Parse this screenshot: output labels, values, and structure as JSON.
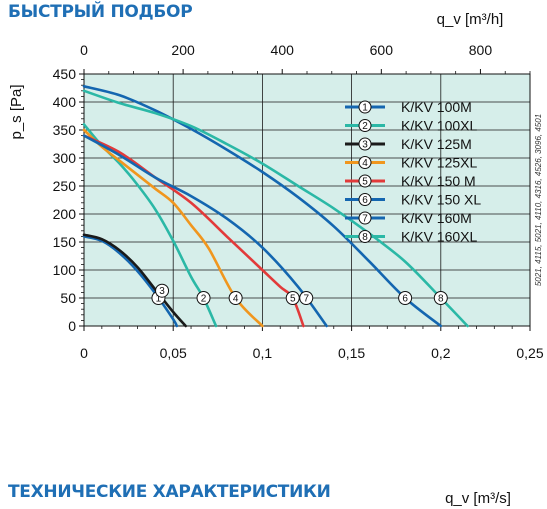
{
  "headings": {
    "top": "БЫСТРЫЙ ПОДБОР",
    "bottom": "ТЕХНИЧЕСКИЕ ХАРАКТЕРИСТИКИ"
  },
  "side_note": "5021, 4115, 5021, 4110, 4316, 4526, 3096, 4501",
  "colors": {
    "plot_background": "#d6eeea",
    "grid": "#1a1a1a",
    "heading": "#1f6fb5"
  },
  "chart_data": {
    "type": "line",
    "title": "",
    "xlabel": "q_v [m³/s]",
    "x2label": "q_v [m³/h]",
    "ylabel": "p_s [Pa]",
    "xlim": [
      0,
      0.25
    ],
    "x2lim": [
      0,
      900
    ],
    "ylim": [
      0,
      450
    ],
    "x_ticks": [
      "0",
      "0,05",
      "0,1",
      "0,15",
      "0,2",
      "0,25"
    ],
    "x2_ticks": [
      "0",
      "200",
      "400",
      "600",
      "800"
    ],
    "y_ticks": [
      "0",
      "50",
      "100",
      "150",
      "200",
      "250",
      "300",
      "350",
      "400",
      "450"
    ],
    "grid": true,
    "legend_position": "top-right",
    "marker_level_pa": 50,
    "series": [
      {
        "name": "K/KV 100M",
        "marker": "1",
        "color": "#1466b0",
        "x": [
          0,
          0.01,
          0.02,
          0.03,
          0.04,
          0.05,
          0.052
        ],
        "y": [
          160,
          152,
          130,
          98,
          58,
          12,
          0
        ]
      },
      {
        "name": "K/KV 100XL",
        "marker": "2",
        "color": "#2bb8a6",
        "x": [
          0,
          0.01,
          0.02,
          0.03,
          0.04,
          0.05,
          0.06,
          0.067,
          0.074
        ],
        "y": [
          360,
          322,
          290,
          252,
          208,
          152,
          88,
          50,
          0
        ]
      },
      {
        "name": "K/KV 125M",
        "marker": "3",
        "color": "#1a1a1a",
        "x": [
          0,
          0.01,
          0.02,
          0.03,
          0.04,
          0.05,
          0.057
        ],
        "y": [
          163,
          155,
          135,
          105,
          65,
          25,
          0
        ]
      },
      {
        "name": "K/KV 125XL",
        "marker": "4",
        "color": "#f0961e",
        "x": [
          0,
          0.01,
          0.02,
          0.03,
          0.04,
          0.05,
          0.06,
          0.07,
          0.085,
          0.1
        ],
        "y": [
          350,
          320,
          295,
          270,
          245,
          220,
          180,
          138,
          50,
          0
        ]
      },
      {
        "name": "K/KV 150 M",
        "marker": "5",
        "color": "#e23a3a",
        "x": [
          0,
          0.02,
          0.04,
          0.06,
          0.08,
          0.09,
          0.1,
          0.11,
          0.117,
          0.123
        ],
        "y": [
          340,
          310,
          265,
          220,
          160,
          130,
          100,
          70,
          50,
          0
        ]
      },
      {
        "name": "K/KV 150 XL",
        "marker": "6",
        "color": "#1466b0",
        "x": [
          0,
          0.02,
          0.04,
          0.06,
          0.08,
          0.1,
          0.12,
          0.14,
          0.16,
          0.18,
          0.2
        ],
        "y": [
          428,
          412,
          385,
          352,
          315,
          275,
          230,
          178,
          115,
          50,
          0
        ]
      },
      {
        "name": "K/KV 160M",
        "marker": "7",
        "color": "#1466b0",
        "x": [
          0,
          0.02,
          0.04,
          0.06,
          0.08,
          0.1,
          0.12,
          0.136
        ],
        "y": [
          340,
          305,
          265,
          232,
          192,
          140,
          70,
          0
        ]
      },
      {
        "name": "K/KV 160XL",
        "marker": "8",
        "color": "#2bb8a6",
        "x": [
          0,
          0.02,
          0.04,
          0.06,
          0.08,
          0.1,
          0.12,
          0.14,
          0.16,
          0.18,
          0.2,
          0.215
        ],
        "y": [
          420,
          398,
          380,
          357,
          325,
          290,
          250,
          210,
          165,
          115,
          50,
          0
        ]
      }
    ]
  }
}
